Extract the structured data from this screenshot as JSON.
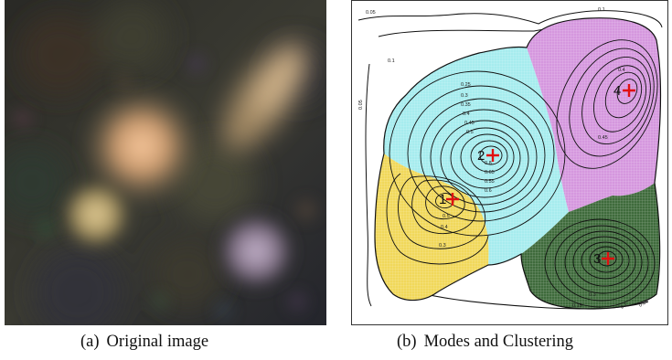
{
  "figure": {
    "panels": [
      {
        "id": "a",
        "caption_label": "(a)",
        "caption_text": "Original image"
      },
      {
        "id": "b",
        "caption_label": "(b)",
        "caption_text": "Modes and Clustering",
        "modes": [
          {
            "label": "1",
            "cluster_color": "#f1d85a"
          },
          {
            "label": "2",
            "cluster_color": "#a6ecee"
          },
          {
            "label": "3",
            "cluster_color": "#3f6b3c"
          },
          {
            "label": "4",
            "cluster_color": "#d597de"
          }
        ],
        "contour_labels": [
          "0.05",
          "0.1",
          "0.05",
          "0.1",
          "0.25",
          "0.3",
          "0.35",
          "0.4",
          "0.45",
          "0.5",
          "0.55",
          "0.6",
          "0.65",
          "0.8",
          "0.5",
          "0.4",
          "0.3",
          "0.15",
          "0.1",
          "0.05",
          "0.3",
          "0.4",
          "0.45"
        ],
        "mode_marker_color": "#e01010"
      }
    ]
  }
}
